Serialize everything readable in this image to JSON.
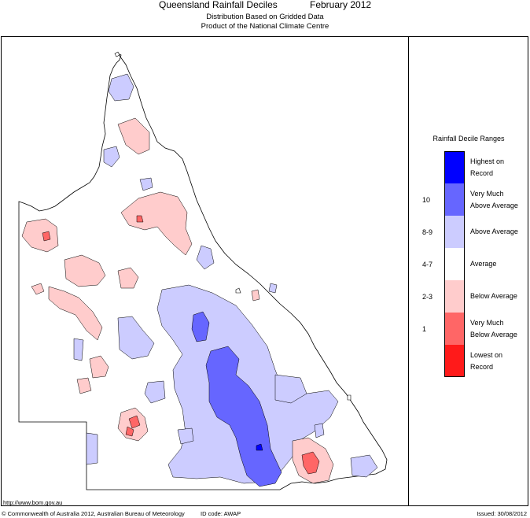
{
  "header": {
    "title": "Queensland Rainfall Deciles",
    "period": "February 2012",
    "subtitle_line1": "Distribution Based on Gridded Data",
    "subtitle_line2": "Product of the National Climate Centre"
  },
  "legend": {
    "title": "Rainfall Decile Ranges",
    "items": [
      {
        "range": "",
        "label_line1": "Highest on",
        "label_line2": "Record",
        "color": "#0000ff"
      },
      {
        "range": "10",
        "label_line1": "Very Much",
        "label_line2": "Above Average",
        "color": "#6666ff"
      },
      {
        "range": "8-9",
        "label_line1": "Above Average",
        "label_line2": "",
        "color": "#ccccff"
      },
      {
        "range": "4-7",
        "label_line1": "Average",
        "label_line2": "",
        "color": "#ffffff"
      },
      {
        "range": "2-3",
        "label_line1": "Below Average",
        "label_line2": "",
        "color": "#ffcccc"
      },
      {
        "range": "1",
        "label_line1": "Very Much",
        "label_line2": "Below Average",
        "color": "#ff6666"
      },
      {
        "range": "",
        "label_line1": "Lowest on",
        "label_line2": "Record",
        "color": "#ff1a1a"
      }
    ]
  },
  "footer": {
    "url": "http://www.bom.gov.au",
    "copyright": "© Commonwealth of Australia 2012, Australian Bureau of Meteorology",
    "id_code": "ID code: AWAP",
    "issued": "Issued: 30/08/2012"
  }
}
